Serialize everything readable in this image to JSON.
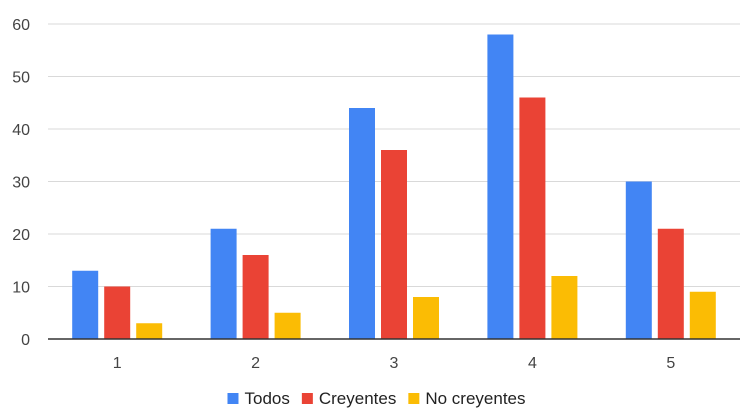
{
  "chart_data": {
    "type": "bar",
    "title": "",
    "xlabel": "",
    "ylabel": "",
    "categories": [
      "1",
      "2",
      "3",
      "4",
      "5"
    ],
    "series": [
      {
        "name": "Todos",
        "color": "#4285f4",
        "values": [
          13,
          21,
          44,
          58,
          30
        ]
      },
      {
        "name": "Creyentes",
        "color": "#ea4335",
        "values": [
          10,
          16,
          36,
          46,
          21
        ]
      },
      {
        "name": "No creyentes",
        "color": "#fbbc04",
        "values": [
          3,
          5,
          8,
          12,
          9
        ]
      }
    ],
    "ylim": [
      0,
      60
    ],
    "yticks": [
      "0",
      "10",
      "20",
      "30",
      "40",
      "50",
      "60"
    ],
    "grid": true,
    "legend_position": "bottom"
  }
}
